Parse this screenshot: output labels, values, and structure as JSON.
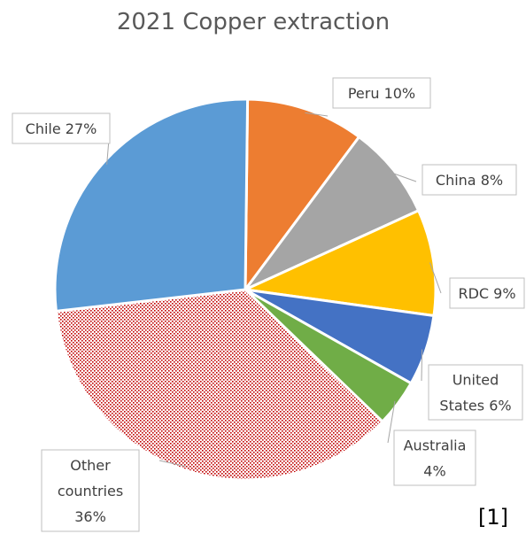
{
  "chart_data": {
    "type": "pie",
    "title": "2021 Copper extraction",
    "slices": [
      {
        "label_lines": [
          "Peru 10%"
        ],
        "category": "Peru",
        "value": 10,
        "color": "#ED7D31",
        "pattern": false
      },
      {
        "label_lines": [
          "China 8%"
        ],
        "category": "China",
        "value": 8,
        "color": "#A5A5A5",
        "pattern": false
      },
      {
        "label_lines": [
          "RDC 9%"
        ],
        "category": "RDC",
        "value": 9,
        "color": "#FFC000",
        "pattern": false
      },
      {
        "label_lines": [
          "United",
          "States 6%"
        ],
        "category": "United States",
        "value": 6,
        "color": "#4472C4",
        "pattern": false
      },
      {
        "label_lines": [
          "Australia",
          "4%"
        ],
        "category": "Australia",
        "value": 4,
        "color": "#70AD47",
        "pattern": false
      },
      {
        "label_lines": [
          "Other",
          "countries",
          "36%"
        ],
        "category": "Other countries",
        "value": 36,
        "color": "#C00000",
        "pattern": true
      },
      {
        "label_lines": [
          "Chile 27%"
        ],
        "category": "Chile",
        "value": 27,
        "color": "#5B9BD5",
        "pattern": false
      }
    ],
    "legend": "none",
    "data_labels": "outside-boxes"
  },
  "footnote": "[1]"
}
